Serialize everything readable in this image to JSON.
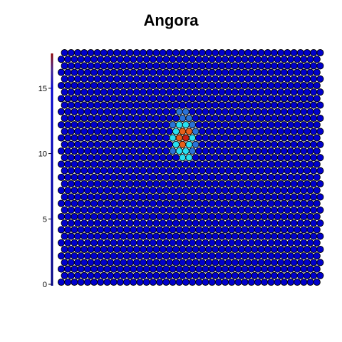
{
  "chart_data": {
    "type": "heatmap",
    "subtype": "hexagonal-som-map",
    "title": "Angora",
    "xlabel": "",
    "ylabel": "",
    "ylim": [
      0,
      17.5
    ],
    "y_ticks": [
      0,
      5,
      10,
      15
    ],
    "grid_rows": 36,
    "grid_cols": 40,
    "grid": false,
    "legend": "none",
    "colorbar": "left vertical strip, dark blue to dark red",
    "colors": {
      "background": "#ffffff",
      "cell_outline": "#000000",
      "level_0": "#0000cc",
      "level_1": "#2a72d8",
      "level_2": "#29e0f0",
      "level_3": "#e8601a",
      "level_4": "#c82010"
    },
    "baseline_level": 0,
    "hotspots": [
      {
        "row": 19,
        "col": 18,
        "level": 2
      },
      {
        "row": 19,
        "col": 19,
        "level": 2
      },
      {
        "row": 20,
        "col": 17,
        "level": 1
      },
      {
        "row": 20,
        "col": 18,
        "level": 2
      },
      {
        "row": 20,
        "col": 19,
        "level": 2
      },
      {
        "row": 20,
        "col": 20,
        "level": 1
      },
      {
        "row": 21,
        "col": 17,
        "level": 2
      },
      {
        "row": 21,
        "col": 18,
        "level": 3
      },
      {
        "row": 21,
        "col": 19,
        "level": 2
      },
      {
        "row": 21,
        "col": 20,
        "level": 1
      },
      {
        "row": 22,
        "col": 17,
        "level": 2
      },
      {
        "row": 22,
        "col": 18,
        "level": 3
      },
      {
        "row": 22,
        "col": 19,
        "level": 4
      },
      {
        "row": 22,
        "col": 20,
        "level": 2
      },
      {
        "row": 23,
        "col": 17,
        "level": 2
      },
      {
        "row": 23,
        "col": 18,
        "level": 3
      },
      {
        "row": 23,
        "col": 19,
        "level": 3
      },
      {
        "row": 23,
        "col": 20,
        "level": 1
      },
      {
        "row": 24,
        "col": 17,
        "level": 1
      },
      {
        "row": 24,
        "col": 18,
        "level": 2
      },
      {
        "row": 24,
        "col": 19,
        "level": 2
      },
      {
        "row": 24,
        "col": 20,
        "level": 1
      },
      {
        "row": 25,
        "col": 18,
        "level": 1
      },
      {
        "row": 25,
        "col": 19,
        "level": 1
      },
      {
        "row": 26,
        "col": 18,
        "level": 1
      },
      {
        "row": 26,
        "col": 19,
        "level": 1
      }
    ]
  }
}
